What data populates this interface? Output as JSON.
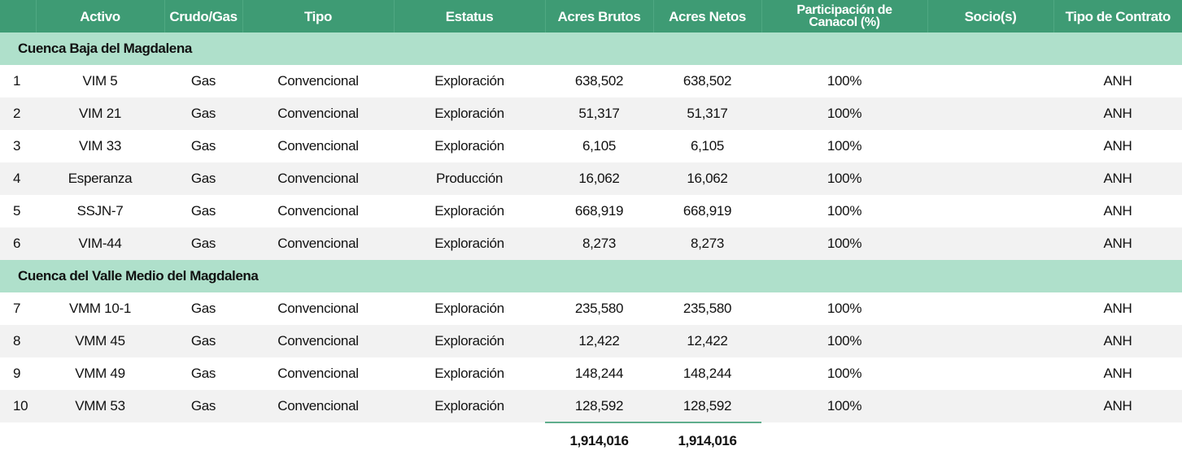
{
  "headers": {
    "num": "",
    "activo": "Activo",
    "crudo_gas": "Crudo/Gas",
    "tipo": "Tipo",
    "estatus": "Estatus",
    "acres_brutos": "Acres Brutos",
    "acres_netos": "Acres Netos",
    "participacion_line1": "Participación de",
    "participacion_line2": "Canacol (%)",
    "socios": "Socio(s)",
    "tipo_contrato": "Tipo de Contrato"
  },
  "sections": [
    {
      "name": "Cuenca Baja del Magdalena",
      "rows": [
        {
          "num": "1",
          "activo": "VIM 5",
          "crudo_gas": "Gas",
          "tipo": "Convencional",
          "estatus": "Exploración",
          "acres_brutos": "638,502",
          "acres_netos": "638,502",
          "participacion": "100%",
          "socios": "",
          "tipo_contrato": "ANH"
        },
        {
          "num": "2",
          "activo": "VIM 21",
          "crudo_gas": "Gas",
          "tipo": "Convencional",
          "estatus": "Exploración",
          "acres_brutos": "51,317",
          "acres_netos": "51,317",
          "participacion": "100%",
          "socios": "",
          "tipo_contrato": "ANH"
        },
        {
          "num": "3",
          "activo": "VIM 33",
          "crudo_gas": "Gas",
          "tipo": "Convencional",
          "estatus": "Exploración",
          "acres_brutos": "6,105",
          "acres_netos": "6,105",
          "participacion": "100%",
          "socios": "",
          "tipo_contrato": "ANH"
        },
        {
          "num": "4",
          "activo": "Esperanza",
          "crudo_gas": "Gas",
          "tipo": "Convencional",
          "estatus": "Producción",
          "acres_brutos": "16,062",
          "acres_netos": "16,062",
          "participacion": "100%",
          "socios": "",
          "tipo_contrato": "ANH"
        },
        {
          "num": "5",
          "activo": "SSJN-7",
          "crudo_gas": "Gas",
          "tipo": "Convencional",
          "estatus": "Exploración",
          "acres_brutos": "668,919",
          "acres_netos": "668,919",
          "participacion": "100%",
          "socios": "",
          "tipo_contrato": "ANH"
        },
        {
          "num": "6",
          "activo": "VIM-44",
          "crudo_gas": "Gas",
          "tipo": "Convencional",
          "estatus": "Exploración",
          "acres_brutos": "8,273",
          "acres_netos": "8,273",
          "participacion": "100%",
          "socios": "",
          "tipo_contrato": "ANH"
        }
      ]
    },
    {
      "name": "Cuenca del Valle Medio del Magdalena",
      "rows": [
        {
          "num": "7",
          "activo": "VMM 10-1",
          "crudo_gas": "Gas",
          "tipo": "Convencional",
          "estatus": "Exploración",
          "acres_brutos": "235,580",
          "acres_netos": "235,580",
          "participacion": "100%",
          "socios": "",
          "tipo_contrato": "ANH"
        },
        {
          "num": "8",
          "activo": "VMM 45",
          "crudo_gas": "Gas",
          "tipo": "Convencional",
          "estatus": "Exploración",
          "acres_brutos": "12,422",
          "acres_netos": "12,422",
          "participacion": "100%",
          "socios": "",
          "tipo_contrato": "ANH"
        },
        {
          "num": "9",
          "activo": "VMM 49",
          "crudo_gas": "Gas",
          "tipo": "Convencional",
          "estatus": "Exploración",
          "acres_brutos": "148,244",
          "acres_netos": "148,244",
          "participacion": "100%",
          "socios": "",
          "tipo_contrato": "ANH"
        },
        {
          "num": "10",
          "activo": "VMM 53",
          "crudo_gas": "Gas",
          "tipo": "Convencional",
          "estatus": "Exploración",
          "acres_brutos": "128,592",
          "acres_netos": "128,592",
          "participacion": "100%",
          "socios": "",
          "tipo_contrato": "ANH"
        }
      ]
    }
  ],
  "totals": {
    "acres_brutos": "1,914,016",
    "acres_netos": "1,914,016"
  },
  "colors": {
    "header_bg": "#3e9b74",
    "section_bg": "#afe0cb",
    "alt_row_bg": "#f2f2f2",
    "total_line": "#5fae8d"
  }
}
